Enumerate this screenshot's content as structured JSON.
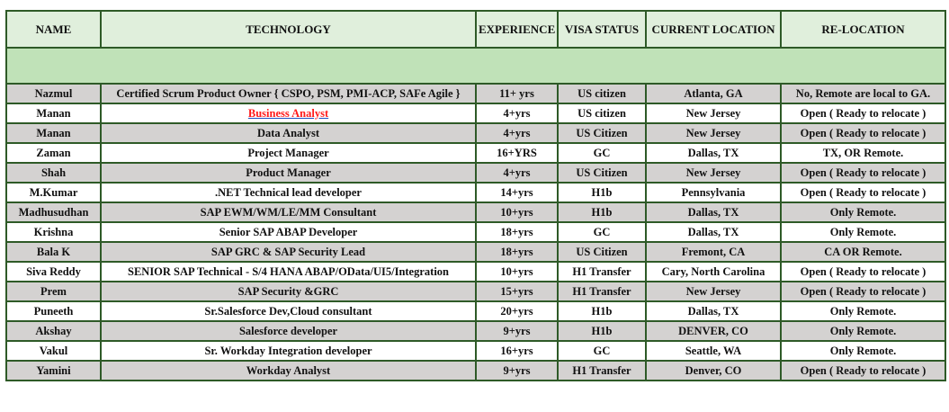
{
  "headers": [
    "NAME",
    "TECHNOLOGY",
    "EXPERIENCE",
    "VISA STATUS",
    "CURRENT LOCATION",
    "RE-LOCATION"
  ],
  "link_color": "#ff1a1a",
  "rows": [
    {
      "name": "Nazmul",
      "technology": "Certified Scrum Product Owner { CSPO, PSM, PMI-ACP, SAFe Agile }",
      "experience": "11+ yrs",
      "visa": "US citizen",
      "location": "Atlanta, GA",
      "relocation": "No, Remote are local to GA."
    },
    {
      "name": "Manan",
      "technology": "Business Analyst",
      "experience": "4+yrs",
      "visa": "US citizen",
      "location": "New Jersey",
      "relocation": "Open ( Ready to relocate )",
      "technology_is_link": true
    },
    {
      "name": "Manan",
      "technology": "Data Analyst",
      "experience": "4+yrs",
      "visa": "US Citizen",
      "location": "New Jersey",
      "relocation": "Open ( Ready to relocate )"
    },
    {
      "name": "Zaman",
      "technology": "Project Manager",
      "experience": "16+YRS",
      "visa": "GC",
      "location": "Dallas, TX",
      "relocation": "TX, OR Remote."
    },
    {
      "name": "Shah",
      "technology": "Product Manager",
      "experience": "4+yrs",
      "visa": "US Citizen",
      "location": "New Jersey",
      "relocation": "Open ( Ready to relocate )"
    },
    {
      "name": "M.Kumar",
      "technology": ".NET Technical lead developer",
      "experience": "14+yrs",
      "visa": "H1b",
      "location": "Pennsylvania",
      "relocation": "Open ( Ready to relocate )"
    },
    {
      "name": "Madhusudhan",
      "technology": "SAP EWM/WM/LE/MM Consultant",
      "experience": "10+yrs",
      "visa": "H1b",
      "location": "Dallas, TX",
      "relocation": "Only Remote."
    },
    {
      "name": "Krishna",
      "technology": "Senior SAP ABAP Developer",
      "experience": "18+yrs",
      "visa": "GC",
      "location": "Dallas, TX",
      "relocation": "Only Remote."
    },
    {
      "name": "Bala K",
      "technology": "SAP GRC & SAP Security Lead",
      "experience": "18+yrs",
      "visa": "US Citizen",
      "location": "Fremont, CA",
      "relocation": "CA OR Remote."
    },
    {
      "name": "Siva Reddy",
      "technology": "SENIOR SAP Technical - S/4 HANA ABAP/OData/UI5/Integration",
      "experience": "10+yrs",
      "visa": "H1 Transfer",
      "location": "Cary, North Carolina",
      "relocation": "Open ( Ready to relocate )"
    },
    {
      "name": "Prem",
      "technology": "SAP Security &GRC",
      "experience": "15+yrs",
      "visa": "H1 Transfer",
      "location": "New Jersey",
      "relocation": "Open ( Ready to relocate )"
    },
    {
      "name": "Puneeth",
      "technology": "Sr.Salesforce Dev,Cloud consultant",
      "experience": "20+yrs",
      "visa": "H1b",
      "location": "Dallas, TX",
      "relocation": "Only Remote."
    },
    {
      "name": "Akshay",
      "technology": "Salesforce developer",
      "experience": "9+yrs",
      "visa": "H1b",
      "location": "DENVER, CO",
      "relocation": "Only Remote."
    },
    {
      "name": "Vakul",
      "technology": "Sr. Workday Integration developer",
      "experience": "16+yrs",
      "visa": "GC",
      "location": "Seattle, WA",
      "relocation": "Only Remote."
    },
    {
      "name": "Yamini",
      "technology": "Workday Analyst",
      "experience": "9+yrs",
      "visa": "H1 Transfer",
      "location": "Denver, CO",
      "relocation": "Open ( Ready to relocate )"
    }
  ]
}
